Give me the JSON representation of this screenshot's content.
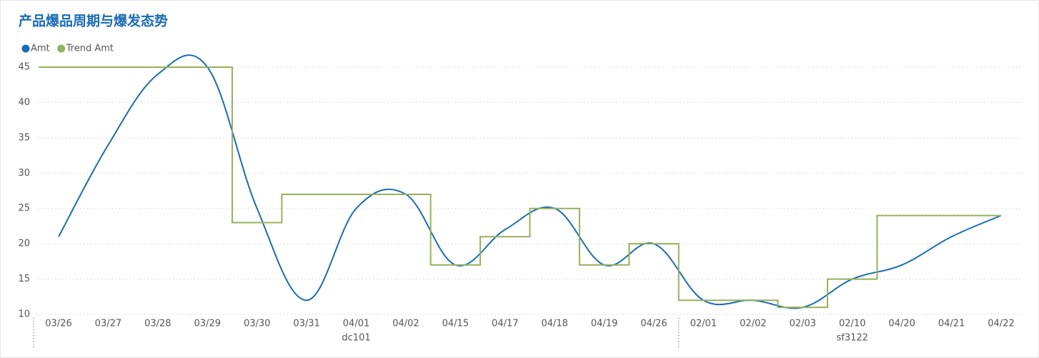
{
  "chart_data": {
    "type": "line",
    "title": "产品爆品周期与爆发态势",
    "categories": [
      "03/26",
      "03/27",
      "03/28",
      "03/29",
      "03/30",
      "03/31",
      "04/01",
      "04/02",
      "04/15",
      "04/17",
      "04/18",
      "04/19",
      "04/26",
      "02/01",
      "02/02",
      "02/03",
      "02/10",
      "04/20",
      "04/21",
      "04/22"
    ],
    "groups": [
      {
        "name": "dc101",
        "count": 13
      },
      {
        "name": "sf3122",
        "count": 7
      }
    ],
    "series": [
      {
        "name": "Amt",
        "color": "#1a6bb5",
        "style": "smooth",
        "values": [
          21,
          34,
          44,
          45,
          25,
          12,
          25,
          27,
          17,
          22,
          25,
          17,
          20,
          12,
          12,
          11,
          15,
          17,
          21,
          24
        ]
      },
      {
        "name": "Trend Amt",
        "color": "#95b15a",
        "style": "step",
        "values": [
          45,
          45,
          45,
          45,
          23,
          27,
          27,
          27,
          17,
          21,
          25,
          17,
          20,
          12,
          12,
          11,
          15,
          24,
          24,
          24
        ]
      }
    ],
    "ylim": [
      10,
      45
    ],
    "yticks": [
      10,
      15,
      20,
      25,
      30,
      35,
      40,
      45
    ],
    "grid": true,
    "legend": "top-left"
  }
}
